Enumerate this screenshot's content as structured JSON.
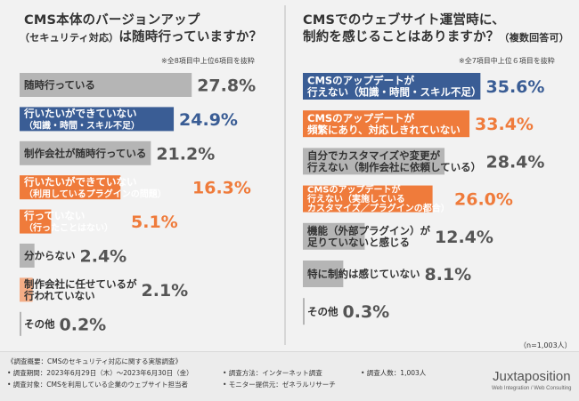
{
  "left": {
    "title_line1": "CMS本体のバージョンアップ",
    "title_line2_small": "（セキュリティ対応）",
    "title_line2_rest": "は随時行っていますか？",
    "note": "※全8項目中上位6項目を抜粋"
  },
  "right": {
    "title_line1": "CMSでのウェブサイト運営時に、",
    "title_line2": "制約を感じることはありますか？",
    "title_line2_small": "（複数回答可）",
    "note": "※全7項目中上位６項目を抜粋",
    "n_note": "（n=1,003人）"
  },
  "chart_data": [
    {
      "type": "bar",
      "orientation": "horizontal",
      "categories": [
        [
          "随時行っている"
        ],
        [
          "行いたいができていない",
          "（知識・時間・スキル不足）"
        ],
        [
          "制作会社が随時行っている"
        ],
        [
          "行いたいができていない",
          "（利用しているプラグインの問題）"
        ],
        [
          "行っていない",
          "（行ったことはない）"
        ],
        [
          "分からない"
        ],
        [
          "制作会社に任せているが",
          "行われていない"
        ],
        [
          "その他"
        ]
      ],
      "values": [
        27.8,
        24.9,
        21.2,
        16.3,
        5.1,
        2.4,
        2.1,
        0.2
      ],
      "labels": [
        "27.8%",
        "24.9%",
        "21.2%",
        "16.3%",
        "5.1%",
        "2.4%",
        "2.1%",
        "0.2%"
      ],
      "colors": [
        "#b5b5b5",
        "#3a5d95",
        "#b5b5b5",
        "#ef7b3b",
        "#ef7b3b",
        "#b5b5b5",
        "#f4ad86",
        "#b5b5b5"
      ]
    },
    {
      "type": "bar",
      "orientation": "horizontal",
      "categories": [
        [
          "CMSのアップデートが",
          "行えない（知識・時間・スキル不足）"
        ],
        [
          "CMSのアップデートが",
          "頻繁にあり、対応しきれていない"
        ],
        [
          "自分でカスタマイズや変更が",
          "行えない（制作会社に依頼している）"
        ],
        [
          "CMSのアップデートが",
          "行えない（実施している",
          "カスタマイズ／プラグインの都合）"
        ],
        [
          "機能（外部プラグイン）が",
          "足りていないと感じる"
        ],
        [
          "特に制約は感じていない"
        ],
        [
          "その他"
        ]
      ],
      "values": [
        35.6,
        33.4,
        28.4,
        26.0,
        12.4,
        8.1,
        0.3
      ],
      "labels": [
        "35.6%",
        "33.4%",
        "28.4%",
        "26.0%",
        "12.4%",
        "8.1%",
        "0.3%"
      ],
      "colors": [
        "#3a5d95",
        "#ef7b3b",
        "#b5b5b5",
        "#ef7b3b",
        "#b5b5b5",
        "#b5b5b5",
        "#b5b5b5"
      ]
    }
  ],
  "footer": {
    "items": [
      "《調査概要：CMSのセキュリティ対応に関する実態調査》",
      "• 調査期間：2023年6月29日（木）〜2023年6月30日（金）",
      "• 調査対象：CMSを利用している企業のウェブサイト担当者",
      "• 調査方法：インターネット調査",
      "• モニター提供元：ゼネラルリサーチ",
      "• 調査人数：1,003人"
    ],
    "logo": "Juxtaposition",
    "logo_sub": "Web Integration / Web Consulting"
  },
  "colors": {
    "gray": "#b5b5b5",
    "navy": "#3a5d95",
    "orange": "#ef7b3b",
    "light_orange": "#f4ad86"
  }
}
